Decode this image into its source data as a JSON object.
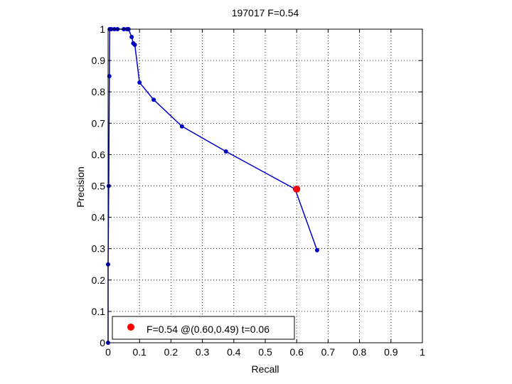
{
  "chart_data": {
    "type": "line",
    "title": "197017 F=0.54",
    "xlabel": "Recall",
    "ylabel": "Precision",
    "xlim": [
      0,
      1
    ],
    "ylim": [
      0,
      1
    ],
    "grid": true,
    "x_ticks": [
      "0",
      "0.1",
      "0.2",
      "0.3",
      "0.4",
      "0.5",
      "0.6",
      "0.7",
      "0.8",
      "0.9",
      "1"
    ],
    "y_ticks": [
      "0",
      "0.1",
      "0.2",
      "0.3",
      "0.4",
      "0.5",
      "0.6",
      "0.7",
      "0.8",
      "0.9",
      "1"
    ],
    "series": [
      {
        "color": "#0000cc",
        "marker": "dot",
        "points": [
          [
            0.0,
            0.0
          ],
          [
            0.0,
            0.25
          ],
          [
            0.002,
            0.5
          ],
          [
            0.004,
            0.85
          ],
          [
            0.005,
            1.0
          ],
          [
            0.01,
            1.0
          ],
          [
            0.02,
            1.0
          ],
          [
            0.03,
            1.0
          ],
          [
            0.05,
            1.0
          ],
          [
            0.06,
            1.0
          ],
          [
            0.065,
            1.0
          ],
          [
            0.075,
            0.975
          ],
          [
            0.08,
            0.955
          ],
          [
            0.085,
            0.95
          ],
          [
            0.1,
            0.83
          ],
          [
            0.145,
            0.775
          ],
          [
            0.235,
            0.69
          ],
          [
            0.375,
            0.61
          ],
          [
            0.595,
            0.49
          ],
          [
            0.665,
            0.295
          ]
        ]
      }
    ],
    "optimum": {
      "x": 0.6,
      "y": 0.49,
      "color": "#ff0000"
    },
    "legend": {
      "position": "bottom-left",
      "label": "F=0.54 @(0.60,0.49) t=0.06"
    }
  }
}
